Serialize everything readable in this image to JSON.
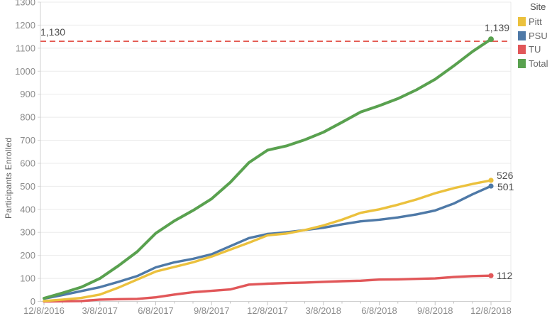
{
  "chart_data": {
    "type": "line",
    "title": "",
    "xlabel": "",
    "ylabel": "Participants Enrolled",
    "legend_title": "Site",
    "legend_position": "top-right",
    "grid": "horizontal",
    "ylim": [
      0,
      1300
    ],
    "y_tick_labels": [
      "0",
      "100",
      "200",
      "300",
      "400",
      "500",
      "600",
      "700",
      "800",
      "900",
      "1000",
      "1100",
      "1200",
      "1300"
    ],
    "x_dates": [
      "12/8/2016",
      "1/8/2017",
      "2/8/2017",
      "3/8/2017",
      "4/8/2017",
      "5/8/2017",
      "6/8/2017",
      "7/8/2017",
      "8/8/2017",
      "9/8/2017",
      "10/8/2017",
      "11/8/2017",
      "12/8/2017",
      "1/8/2018",
      "2/8/2018",
      "3/8/2018",
      "4/8/2018",
      "5/8/2018",
      "6/8/2018",
      "7/8/2018",
      "8/8/2018",
      "9/8/2018",
      "10/8/2018",
      "11/8/2018",
      "12/8/2018"
    ],
    "x_tick_labels": [
      "12/8/2016",
      "3/8/2017",
      "6/8/2017",
      "9/8/2017",
      "12/8/2017",
      "3/8/2018",
      "6/8/2018",
      "9/8/2018",
      "12/8/2018"
    ],
    "ref_line": {
      "value": 1130,
      "label": "1,130",
      "color": "#e4574e",
      "style": "dashed"
    },
    "series": [
      {
        "name": "Pitt",
        "color": "#EBC13D",
        "end_label": "526",
        "values": [
          2,
          8,
          15,
          30,
          60,
          95,
          130,
          150,
          170,
          195,
          225,
          255,
          287,
          295,
          310,
          330,
          355,
          385,
          400,
          420,
          443,
          470,
          492,
          510,
          526
        ]
      },
      {
        "name": "PSU",
        "color": "#4E79A7",
        "end_label": "501",
        "values": [
          12,
          28,
          45,
          62,
          85,
          110,
          148,
          170,
          185,
          205,
          240,
          275,
          293,
          300,
          310,
          320,
          335,
          348,
          355,
          365,
          378,
          395,
          425,
          465,
          501
        ]
      },
      {
        "name": "TU",
        "color": "#E15759",
        "end_label": "112",
        "values": [
          0,
          1,
          2,
          8,
          10,
          11,
          18,
          30,
          40,
          46,
          52,
          73,
          77,
          80,
          82,
          85,
          88,
          90,
          95,
          96,
          98,
          100,
          106,
          110,
          112
        ]
      },
      {
        "name": "Total",
        "color": "#59A14F",
        "end_label": "1,139",
        "values": [
          14,
          37,
          62,
          100,
          155,
          216,
          296,
          350,
          395,
          446,
          517,
          603,
          657,
          675,
          702,
          735,
          778,
          823,
          850,
          881,
          919,
          965,
          1023,
          1085,
          1139
        ]
      }
    ]
  }
}
